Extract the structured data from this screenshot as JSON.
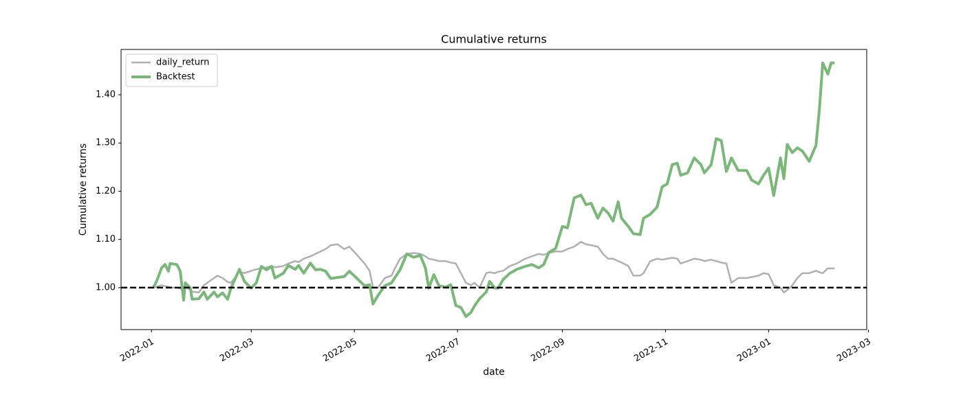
{
  "chart_data": {
    "type": "line",
    "title": "Cumulative returns",
    "x_label": "date",
    "y_label": "Cumulative returns",
    "x": [
      1,
      3,
      6,
      8,
      10,
      11,
      15,
      17,
      19,
      20,
      23,
      24,
      28,
      31,
      33,
      37,
      39,
      42,
      45,
      47,
      52,
      55,
      59,
      62,
      65,
      68,
      71,
      73,
      78,
      81,
      85,
      87,
      90,
      94,
      97,
      100,
      103,
      106,
      110,
      114,
      117,
      121,
      126,
      129,
      131,
      134,
      138,
      142,
      144,
      147,
      151,
      155,
      159,
      162,
      164,
      167,
      170,
      174,
      177,
      180,
      183,
      186,
      189,
      191,
      194,
      198,
      200,
      203,
      205,
      208,
      212,
      216,
      221,
      225,
      229,
      232,
      235,
      239,
      243,
      246,
      250,
      254,
      257,
      260,
      264,
      267,
      270,
      273,
      276,
      278,
      282,
      285,
      289,
      291,
      295,
      299,
      302,
      305,
      308,
      311,
      313,
      317,
      321,
      325,
      327,
      331,
      334,
      337,
      340,
      343,
      347,
      352,
      355,
      359,
      362,
      365,
      368,
      372,
      374,
      376,
      379,
      382,
      385,
      389,
      393,
      395,
      397,
      400,
      402,
      404
    ],
    "series": [
      {
        "name": "daily_return",
        "color": "#b0b0b0",
        "width": 2.5,
        "values": [
          1.0,
          1.002,
          1.005,
          1.003,
          1.002,
          1.0,
          1.0,
          0.998,
          1.0,
          1.002,
          0.995,
          0.992,
          0.99,
          1.005,
          1.01,
          1.02,
          1.025,
          1.02,
          1.012,
          1.01,
          1.033,
          1.03,
          1.035,
          1.038,
          1.04,
          1.042,
          1.045,
          1.042,
          1.045,
          1.05,
          1.055,
          1.053,
          1.06,
          1.065,
          1.07,
          1.075,
          1.08,
          1.088,
          1.09,
          1.08,
          1.085,
          1.07,
          1.05,
          1.035,
          1.0,
          1.0,
          1.02,
          1.025,
          1.04,
          1.06,
          1.07,
          1.072,
          1.07,
          1.065,
          1.06,
          1.058,
          1.055,
          1.055,
          1.052,
          1.05,
          1.03,
          1.01,
          1.005,
          1.01,
          1.0,
          1.03,
          1.032,
          1.03,
          1.033,
          1.035,
          1.045,
          1.05,
          1.06,
          1.065,
          1.07,
          1.068,
          1.072,
          1.075,
          1.075,
          1.08,
          1.085,
          1.095,
          1.09,
          1.088,
          1.085,
          1.07,
          1.06,
          1.06,
          1.055,
          1.052,
          1.045,
          1.025,
          1.025,
          1.03,
          1.055,
          1.06,
          1.058,
          1.06,
          1.062,
          1.06,
          1.05,
          1.055,
          1.06,
          1.058,
          1.055,
          1.058,
          1.055,
          1.052,
          1.05,
          1.01,
          1.02,
          1.02,
          1.022,
          1.025,
          1.03,
          1.028,
          1.005,
          1.0,
          0.99,
          0.995,
          1.005,
          1.02,
          1.03,
          1.03,
          1.035,
          1.032,
          1.03,
          1.04,
          1.04,
          1.04
        ]
      },
      {
        "name": "Backtest",
        "color": "#79b879",
        "width": 4,
        "values": [
          1.0,
          1.013,
          1.041,
          1.048,
          1.034,
          1.05,
          1.048,
          1.034,
          0.974,
          1.01,
          0.999,
          0.976,
          0.977,
          0.991,
          0.976,
          0.991,
          0.981,
          0.989,
          0.976,
          0.999,
          1.038,
          1.013,
          0.999,
          1.01,
          1.044,
          1.037,
          1.044,
          1.02,
          1.03,
          1.046,
          1.038,
          1.046,
          1.03,
          1.051,
          1.037,
          1.038,
          1.034,
          1.019,
          1.021,
          1.023,
          1.034,
          1.021,
          1.004,
          1.006,
          0.966,
          0.984,
          1.004,
          1.01,
          1.021,
          1.037,
          1.07,
          1.063,
          1.067,
          1.041,
          0.999,
          1.027,
          1.004,
          1.001,
          1.006,
          0.963,
          0.959,
          0.94,
          0.949,
          0.962,
          0.977,
          0.991,
          1.013,
          0.999,
          0.999,
          1.017,
          1.03,
          1.038,
          1.044,
          1.048,
          1.041,
          1.048,
          1.073,
          1.081,
          1.127,
          1.124,
          1.186,
          1.192,
          1.172,
          1.175,
          1.144,
          1.165,
          1.155,
          1.138,
          1.178,
          1.144,
          1.127,
          1.112,
          1.11,
          1.144,
          1.152,
          1.167,
          1.209,
          1.215,
          1.255,
          1.258,
          1.233,
          1.238,
          1.269,
          1.255,
          1.238,
          1.255,
          1.309,
          1.305,
          1.241,
          1.269,
          1.243,
          1.243,
          1.223,
          1.215,
          1.233,
          1.248,
          1.191,
          1.269,
          1.226,
          1.297,
          1.28,
          1.29,
          1.283,
          1.262,
          1.295,
          1.369,
          1.466,
          1.443,
          1.466,
          1.466
        ]
      }
    ],
    "hline": 1,
    "xlim": [
      -18,
      423
    ],
    "xticks": [
      {
        "value": 0,
        "label": "2022-01"
      },
      {
        "value": 59,
        "label": "2022-03"
      },
      {
        "value": 120,
        "label": "2022-05"
      },
      {
        "value": 181,
        "label": "2022-07"
      },
      {
        "value": 243,
        "label": "2022-09"
      },
      {
        "value": 304,
        "label": "2022-11"
      },
      {
        "value": 365,
        "label": "2023-01"
      },
      {
        "value": 424,
        "label": "2023-03"
      }
    ],
    "ylim": [
      0.913,
      1.494
    ],
    "yticks": [
      {
        "value": 1.0,
        "label": "1.00"
      },
      {
        "value": 1.1,
        "label": "1.10"
      },
      {
        "value": 1.2,
        "label": "1.20"
      },
      {
        "value": 1.3,
        "label": "1.30"
      },
      {
        "value": 1.4,
        "label": "1.40"
      }
    ],
    "legend": "upper left"
  }
}
